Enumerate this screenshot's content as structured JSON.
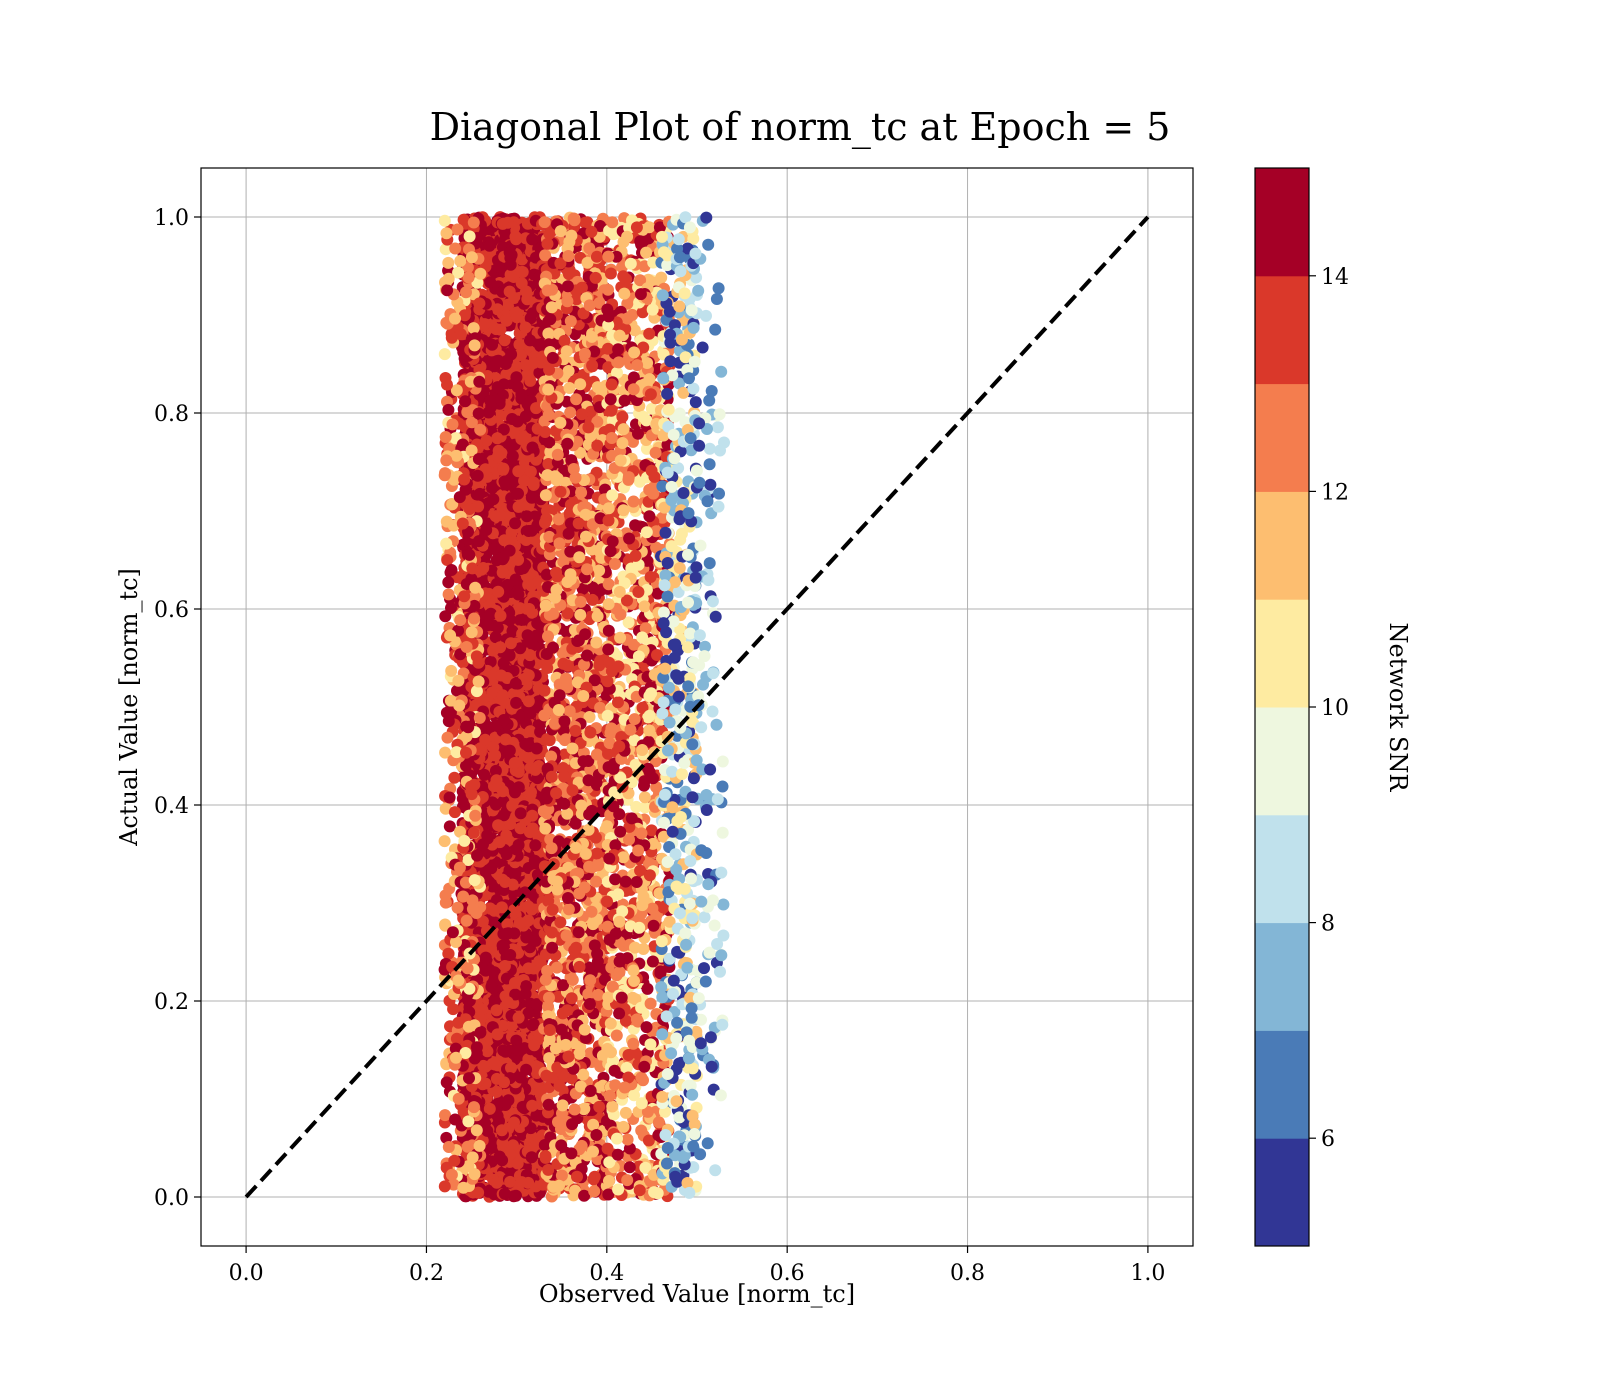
{
  "chart_data": {
    "type": "scatter",
    "title": "Diagonal Plot of norm_tc at Epoch = 5",
    "xlabel": "Observed Value [norm_tc]",
    "ylabel": "Actual Value [norm_tc]",
    "xlim": [
      -0.05,
      1.05
    ],
    "ylim": [
      -0.05,
      1.05
    ],
    "xticks": [
      0.0,
      0.2,
      0.4,
      0.6,
      0.8,
      1.0
    ],
    "xtick_labels": [
      "0.0",
      "0.2",
      "0.4",
      "0.6",
      "0.8",
      "1.0"
    ],
    "yticks": [
      0.0,
      0.2,
      0.4,
      0.6,
      0.8,
      1.0
    ],
    "ytick_labels": [
      "0.0",
      "0.2",
      "0.4",
      "0.6",
      "0.8",
      "1.0"
    ],
    "grid": true,
    "reference_line": {
      "x": [
        0.0,
        1.0
      ],
      "y": [
        0.0,
        1.0
      ],
      "style": "dashed",
      "color": "#000000"
    },
    "colorbar": {
      "label": "Network SNR",
      "range": [
        5,
        15
      ],
      "ticks": [
        6,
        8,
        10,
        12,
        14
      ],
      "tick_labels": [
        "6",
        "8",
        "10",
        "12",
        "14"
      ],
      "colors": [
        "#313695",
        "#4575b4",
        "#74add1",
        "#abd9e9",
        "#e0f3f8",
        "#ffffbf",
        "#fee090",
        "#fdae61",
        "#f46d43",
        "#d73027",
        "#a50026"
      ],
      "bands": [
        "#313695",
        "#4a7bb7",
        "#83b6d6",
        "#c0e1ec",
        "#eef7df",
        "#feeba1",
        "#fdbe70",
        "#f47d4e",
        "#da382a",
        "#a50026"
      ]
    },
    "point_groups": [
      {
        "x_range": [
          0.24,
          0.33
        ],
        "y_range": [
          0.0,
          1.0
        ],
        "snr_range": [
          13.0,
          15.0
        ],
        "count": 5200
      },
      {
        "x_range": [
          0.22,
          0.26
        ],
        "y_range": [
          0.0,
          1.0
        ],
        "snr_range": [
          10.5,
          15.0
        ],
        "count": 450
      },
      {
        "x_range": [
          0.33,
          0.4
        ],
        "y_range": [
          0.0,
          1.0
        ],
        "snr_range": [
          11.0,
          15.0
        ],
        "count": 1700
      },
      {
        "x_range": [
          0.4,
          0.47
        ],
        "y_range": [
          0.0,
          1.0
        ],
        "snr_range": [
          10.0,
          15.0
        ],
        "count": 1300
      },
      {
        "x_range": [
          0.46,
          0.5
        ],
        "y_range": [
          0.0,
          1.0
        ],
        "snr_range": [
          5.0,
          12.0
        ],
        "count": 520
      },
      {
        "x_range": [
          0.49,
          0.53
        ],
        "y_range": [
          0.0,
          1.0
        ],
        "snr_range": [
          5.0,
          10.0
        ],
        "count": 150
      }
    ]
  }
}
